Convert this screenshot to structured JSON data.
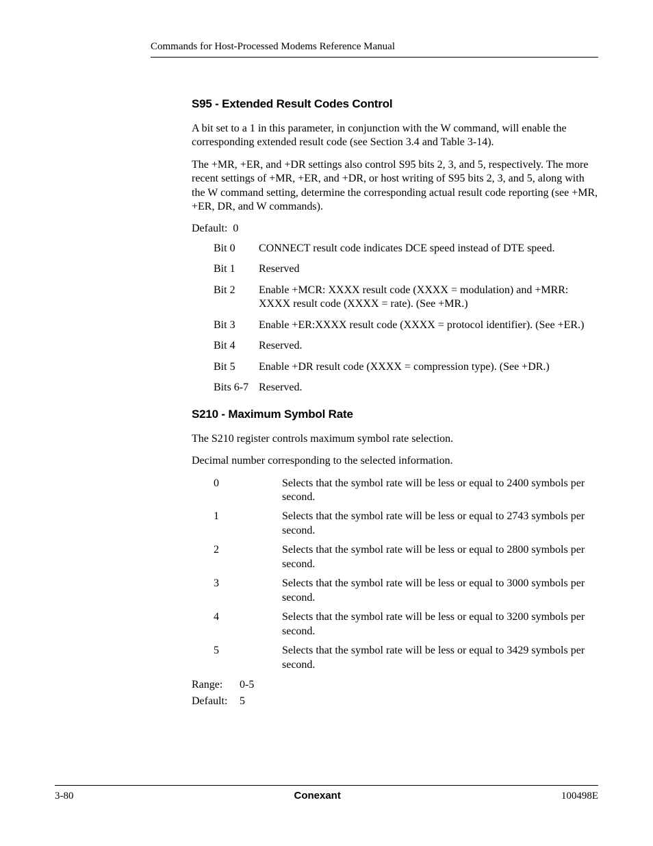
{
  "header": {
    "running_head": "Commands for Host-Processed Modems Reference Manual"
  },
  "s95": {
    "title": "S95 - Extended Result Codes Control",
    "para1_prefix": " A bit set to a 1 in this parameter, in conjunction with the W command, will enable the corresponding extended result code (see Section 3.4 and Table 3-14).",
    "para2": "The +MR, +ER, and +DR settings also control S95 bits 2, 3, and 5, respectively. The more recent settings of +MR, +ER, and +DR, or host writing of S95 bits 2, 3, and 5, along with the W command setting, determine the corresponding actual result code reporting (see +MR, +ER, DR, and W commands).",
    "default_label": "Default:",
    "default_value": "0",
    "bits": [
      {
        "key": "Bit 0",
        "desc": "CONNECT result code indicates DCE speed instead of DTE speed."
      },
      {
        "key": "Bit 1",
        "desc": "Reserved"
      },
      {
        "key": "Bit 2",
        "desc": "Enable +MCR: XXXX result code (XXXX = modulation) and +MRR: XXXX result code (XXXX = rate). (See +MR.)"
      },
      {
        "key": "Bit 3",
        "desc": "Enable +ER:XXXX result code (XXXX = protocol identifier). (See +ER.)"
      },
      {
        "key": "Bit 4",
        "desc": "Reserved."
      },
      {
        "key": "Bit 5",
        "desc": "Enable +DR result code (XXXX = compression type). (See +DR.)"
      },
      {
        "key": "Bits 6-7",
        "desc": "Reserved."
      }
    ]
  },
  "s210": {
    "title": "S210 - Maximum Symbol Rate",
    "para1": " The S210 register controls maximum symbol rate selection.",
    "para2": "Decimal number corresponding to the selected information.",
    "rows": [
      {
        "key": "0",
        "desc": "Selects that the symbol rate will be less or equal to 2400 symbols per second."
      },
      {
        "key": "1",
        "desc": "Selects that the symbol rate will be less or equal to 2743 symbols per second."
      },
      {
        "key": "2",
        "desc": "Selects that the symbol rate will be less or equal to 2800 symbols per second."
      },
      {
        "key": "3",
        "desc": "Selects that the symbol rate will be less or equal to 3000 symbols per second."
      },
      {
        "key": "4",
        "desc": "Selects that the symbol rate will be less or equal to 3200 symbols per second."
      },
      {
        "key": "5",
        "desc": "Selects that the symbol rate will be less or equal to 3429 symbols per second."
      }
    ],
    "range_label": "Range:",
    "range_value": "0-5",
    "default_label": "Default:",
    "default_value": "5"
  },
  "footer": {
    "left": "3-80",
    "center": "Conexant",
    "right": "100498E"
  }
}
